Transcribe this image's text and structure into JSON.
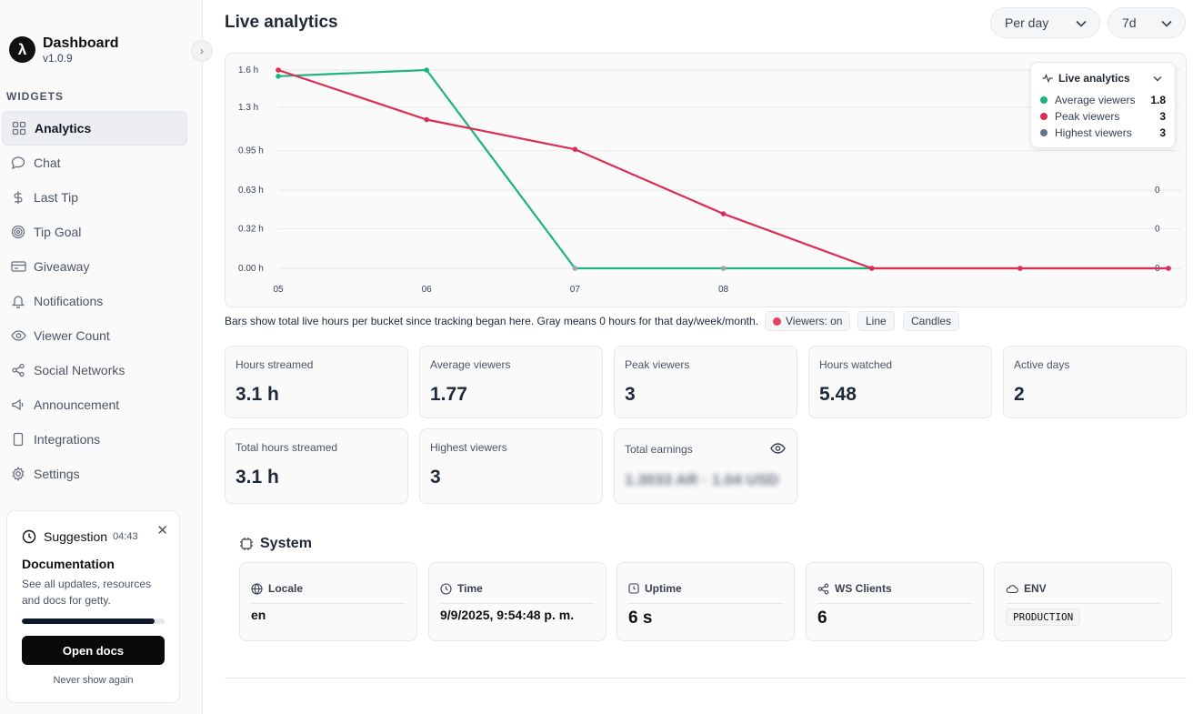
{
  "brand": {
    "name": "Dashboard",
    "version": "v1.0.9",
    "logo_glyph": "λ"
  },
  "sidebar": {
    "section_label": "WIDGETS",
    "items": [
      {
        "label": "Analytics",
        "icon": "grid-icon",
        "active": true
      },
      {
        "label": "Chat",
        "icon": "chat-icon"
      },
      {
        "label": "Last Tip",
        "icon": "dollar-icon"
      },
      {
        "label": "Tip Goal",
        "icon": "target-icon"
      },
      {
        "label": "Giveaway",
        "icon": "ticket-icon"
      },
      {
        "label": "Notifications",
        "icon": "bell-icon"
      },
      {
        "label": "Viewer Count",
        "icon": "eye-icon"
      },
      {
        "label": "Social Networks",
        "icon": "share-icon"
      },
      {
        "label": "Announcement",
        "icon": "megaphone-icon"
      },
      {
        "label": "Integrations",
        "icon": "plug-icon"
      },
      {
        "label": "Settings",
        "icon": "gear-icon"
      }
    ]
  },
  "suggestion": {
    "label": "Suggestion",
    "time": "04:43",
    "title": "Documentation",
    "description": "See all updates, resources and docs for getty.",
    "progress": 0.93,
    "button": "Open docs",
    "dismiss": "Never show again"
  },
  "header": {
    "title": "Live analytics",
    "period_select": "Per day",
    "range_select": "7d"
  },
  "chart_data": {
    "type": "line",
    "x": [
      "05",
      "06",
      "07",
      "08",
      "",
      "",
      ""
    ],
    "y_ticks": [
      "0.00 h",
      "0.32 h",
      "0.63 h",
      "0.95 h",
      "1.3 h",
      "1.6 h"
    ],
    "y_tick_values": [
      0,
      0.32,
      0.63,
      0.95,
      1.3,
      1.6
    ],
    "y2_ticks": [
      "0",
      "0",
      "0"
    ],
    "ylim": [
      0,
      1.6
    ],
    "series": [
      {
        "name": "Average viewers",
        "color": "#1fb37c",
        "values": [
          1.55,
          1.6,
          0,
          0,
          0,
          0,
          0
        ]
      },
      {
        "name": "Peak viewers",
        "color": "#dc2d53",
        "values": [
          1.6,
          1.2,
          0.96,
          0.44,
          0,
          0,
          0
        ]
      }
    ]
  },
  "legend": {
    "title": "Live analytics",
    "items": [
      {
        "name": "Average viewers",
        "value": "1.8",
        "color": "#1fb37c"
      },
      {
        "name": "Peak viewers",
        "value": "3",
        "color": "#dc2d53"
      },
      {
        "name": "Highest viewers",
        "value": "3",
        "color": "#64748b"
      }
    ]
  },
  "chart_note": "Bars show total live hours per bucket since tracking began here. Gray means 0 hours for that day/week/month.",
  "toggles": {
    "viewers": "Viewers: on",
    "line": "Line",
    "candles": "Candles"
  },
  "stats": [
    {
      "label": "Hours streamed",
      "value": "3.1 h"
    },
    {
      "label": "Average viewers",
      "value": "1.77"
    },
    {
      "label": "Peak viewers",
      "value": "3"
    },
    {
      "label": "Hours watched",
      "value": "5.48"
    },
    {
      "label": "Active days",
      "value": "2"
    },
    {
      "label": "Total hours streamed",
      "value": "3.1 h"
    },
    {
      "label": "Highest viewers",
      "value": "3"
    },
    {
      "label": "Total earnings",
      "value": "1.3033 AR · 1.04 USD"
    }
  ],
  "system": {
    "title": "System",
    "locale": {
      "label": "Locale",
      "value": "en"
    },
    "time": {
      "label": "Time",
      "value": "9/9/2025, 9:54:48 p. m."
    },
    "uptime": {
      "label": "Uptime",
      "value": "6 s"
    },
    "ws": {
      "label": "WS Clients",
      "value": "6"
    },
    "env": {
      "label": "ENV",
      "value": "PRODUCTION"
    }
  }
}
